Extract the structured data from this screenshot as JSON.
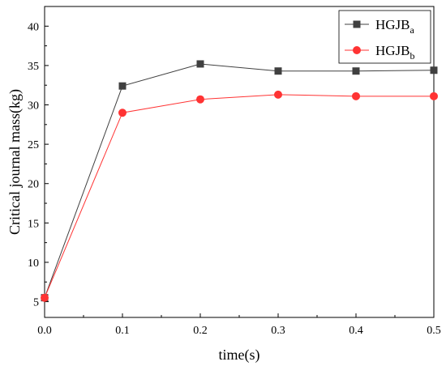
{
  "chart_data": {
    "type": "line",
    "xlabel": "time(s)",
    "ylabel": "Critical journal mass(kg)",
    "xlim": [
      0.0,
      0.5
    ],
    "ylim": [
      3,
      42.5
    ],
    "xticks": [
      "0.0",
      "0.1",
      "0.2",
      "0.3",
      "0.4",
      "0.5"
    ],
    "yticks": [
      "5",
      "10",
      "15",
      "20",
      "25",
      "30",
      "35",
      "40"
    ],
    "x": [
      0.0,
      0.1,
      0.2,
      0.3,
      0.4,
      0.5
    ],
    "grid": false,
    "legend_position": "top-right",
    "series": [
      {
        "name": "HGJBa",
        "legend_base": "HGJB",
        "legend_sub": "a",
        "marker": "square",
        "color": "#404040",
        "values": [
          5.5,
          32.4,
          35.2,
          34.3,
          34.3,
          34.4
        ]
      },
      {
        "name": "HGJBb",
        "legend_base": "HGJB",
        "legend_sub": "b",
        "marker": "circle",
        "color": "#ff3333",
        "values": [
          5.5,
          29.0,
          30.7,
          31.3,
          31.1,
          31.1
        ]
      }
    ]
  }
}
